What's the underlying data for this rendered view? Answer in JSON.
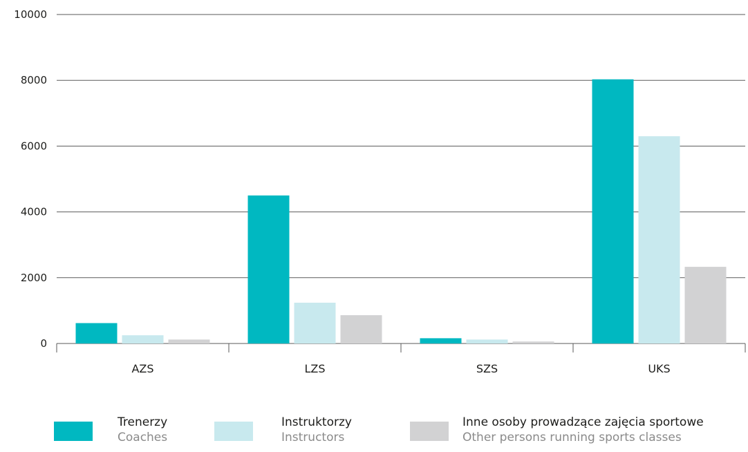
{
  "chart_data": {
    "type": "bar",
    "categories": [
      "AZS",
      "LZS",
      "SZS",
      "UKS"
    ],
    "series": [
      {
        "name": "Trenerzy",
        "name_en": "Coaches",
        "color": "#00b8c1",
        "values": [
          620,
          4500,
          160,
          8030
        ]
      },
      {
        "name": "Instruktorzy",
        "name_en": "Instructors",
        "color": "#c8e9ee",
        "values": [
          250,
          1240,
          120,
          6300
        ]
      },
      {
        "name": "Inne osoby prowadzące zajęcia sportowe",
        "name_en": "Other persons running sports classes",
        "color": "#d2d2d3",
        "values": [
          120,
          860,
          60,
          2330
        ]
      }
    ],
    "y_ticks": [
      "0",
      "2000",
      "4000",
      "6000",
      "8000",
      "10000"
    ],
    "ylim": [
      0,
      10000
    ],
    "grid": true,
    "legend_position": "bottom",
    "title": "",
    "xlabel": "",
    "ylabel": ""
  }
}
